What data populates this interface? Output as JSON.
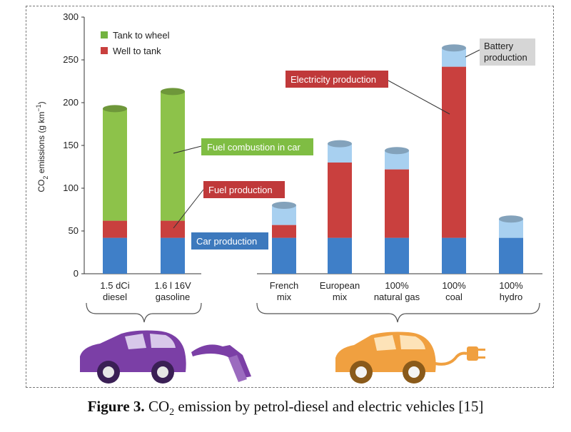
{
  "chart_data": {
    "type": "bar",
    "stacked": true,
    "ylabel_main": "CO",
    "ylabel_sub": "2",
    "ylabel_rest": " emissions (g km",
    "ylabel_sup": "−1",
    "ylabel_close": ")",
    "ylim": [
      0,
      300
    ],
    "yticks": [
      "0",
      "50",
      "100",
      "150",
      "200",
      "250",
      "300"
    ],
    "categories": [
      {
        "lines": [
          "1.5 dCi",
          "diesel"
        ]
      },
      {
        "lines": [
          "1.6 l 16V",
          "gasoline"
        ]
      },
      {
        "lines": [
          "French",
          "mix"
        ]
      },
      {
        "lines": [
          "European",
          "mix"
        ]
      },
      {
        "lines": [
          "100%",
          "natural gas"
        ]
      },
      {
        "lines": [
          "100%",
          "coal"
        ]
      },
      {
        "lines": [
          "100%",
          "hydro"
        ]
      }
    ],
    "series": [
      {
        "name": "Car production",
        "color": "#3f7fc8",
        "values": [
          42,
          42,
          42,
          42,
          42,
          42,
          42
        ]
      },
      {
        "name": "Fuel production",
        "color": "#c9403e",
        "values": [
          20,
          20,
          0,
          0,
          0,
          0,
          0
        ]
      },
      {
        "name": "Fuel combustion in car",
        "color": "#8dc24a",
        "values": [
          131,
          151,
          0,
          0,
          0,
          0,
          0
        ]
      },
      {
        "name": "Electricity production",
        "color": "#c9403e",
        "values": [
          0,
          0,
          15,
          88,
          80,
          200,
          0
        ]
      },
      {
        "name": "Battery production",
        "color": "#a8d0f0",
        "values": [
          0,
          0,
          23,
          22,
          22,
          22,
          22
        ]
      }
    ],
    "legend": [
      {
        "label": "Tank to wheel",
        "color": "#73b340"
      },
      {
        "label": "Well to tank",
        "color": "#c9403e"
      }
    ],
    "callouts": {
      "fuel_combustion": "Fuel combustion in car",
      "fuel_production": "Fuel production",
      "car_production": "Car production",
      "electricity_production": "Electricity production",
      "battery_line1": "Battery",
      "battery_line2": "production"
    }
  },
  "colors": {
    "diesel_car": "#7b3fa6",
    "electric_car": "#f0a040"
  },
  "icons": [
    "diesel-car-icon",
    "fuel-nozzle-icon",
    "electric-car-icon",
    "power-plug-icon"
  ],
  "caption": {
    "bold": "Figure 3.",
    "text_a": " CO",
    "sub": "2",
    "text_b": " emission by petrol-diesel and electric vehicles [15]"
  }
}
